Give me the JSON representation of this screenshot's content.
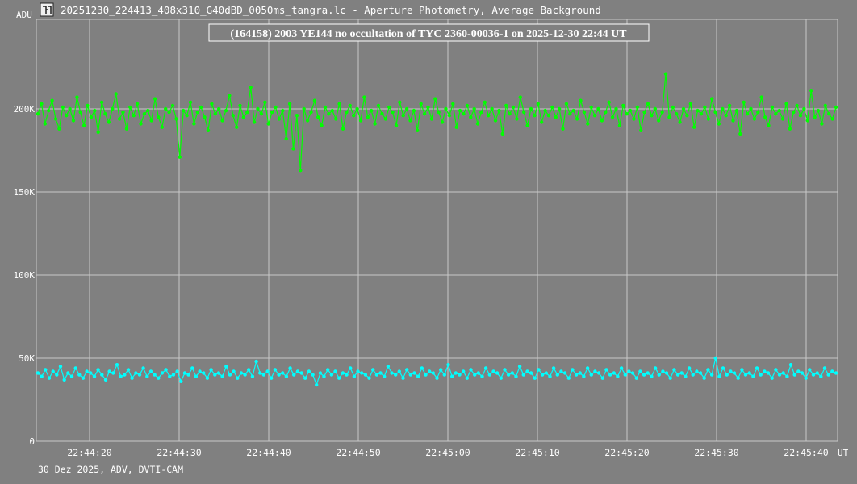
{
  "window": {
    "title": "20251230_224413_408x310_G40dBD_0050ms_tangra.lc - Aperture Photometry, Average Background",
    "icon": "tangra-app-icon"
  },
  "footer": {
    "text": "30 Dez 2025, ADV, DVTI-CAM"
  },
  "colors": {
    "background": "#808080",
    "grid": "#c8c8c8",
    "target_series": "#00ff00",
    "comparison_series": "#00ffff",
    "text": "#ffffff"
  },
  "chart_data": {
    "type": "line",
    "title": "(164158) 2003 YE144 no occultation of TYC 2360-00036-1 on 2025-12-30  22:44 UT",
    "ylabel": "ADU",
    "xlabel": "UT",
    "ylim": [
      0,
      200000
    ],
    "y_ticks": [
      0,
      50000,
      100000,
      150000,
      200000
    ],
    "y_tick_labels": [
      "0",
      "50K",
      "100K",
      "150K",
      "200K"
    ],
    "x_ticks": [
      "22:44:20",
      "22:44:30",
      "22:44:40",
      "22:44:50",
      "22:45:00",
      "22:45:10",
      "22:45:20",
      "22:45:30",
      "22:45:40"
    ],
    "x_range_seconds": [
      15,
      60.0
    ],
    "grid": true,
    "marker": "dot",
    "series": [
      {
        "color": "#00ff00",
        "values": [
          197000,
          203000,
          191000,
          199000,
          205000,
          194000,
          188000,
          201000,
          196000,
          200000,
          193000,
          207000,
          198000,
          190000,
          202000,
          195000,
          199000,
          186000,
          204000,
          197000,
          192000,
          200000,
          209000,
          194000,
          198000,
          188000,
          201000,
          196000,
          203000,
          191000,
          197000,
          199000,
          193000,
          206000,
          195000,
          189000,
          200000,
          198000,
          202000,
          194000,
          171000,
          199000,
          196000,
          204000,
          191000,
          198000,
          201000,
          195000,
          187000,
          203000,
          197000,
          200000,
          193000,
          199000,
          208000,
          196000,
          189000,
          202000,
          195000,
          198000,
          213000,
          192000,
          200000,
          197000,
          204000,
          191000,
          198000,
          201000,
          194000,
          199000,
          182000,
          203000,
          176000,
          196000,
          163000,
          200000,
          193000,
          198000,
          205000,
          195000,
          190000,
          201000,
          197000,
          199000,
          194000,
          203000,
          188000,
          198000,
          202000,
          196000,
          200000,
          193000,
          207000,
          195000,
          199000,
          191000,
          202000,
          197000,
          194000,
          201000,
          198000,
          190000,
          204000,
          196000,
          200000,
          193000,
          199000,
          187000,
          203000,
          197000,
          201000,
          194000,
          206000,
          198000,
          192000,
          200000,
          196000,
          203000,
          189000,
          199000,
          197000,
          202000,
          195000,
          200000,
          191000,
          198000,
          204000,
          196000,
          200000,
          193000,
          199000,
          185000,
          202000,
          197000,
          201000,
          194000,
          207000,
          198000,
          190000,
          200000,
          196000,
          203000,
          192000,
          199000,
          196000,
          201000,
          195000,
          200000,
          188000,
          203000,
          197000,
          199000,
          194000,
          205000,
          198000,
          191000,
          201000,
          196000,
          200000,
          193000,
          198000,
          204000,
          195000,
          200000,
          190000,
          202000,
          197000,
          199000,
          194000,
          201000,
          187000,
          198000,
          203000,
          196000,
          200000,
          193000,
          198000,
          221000,
          195000,
          201000,
          197000,
          192000,
          200000,
          196000,
          203000,
          189000,
          199000,
          197000,
          201000,
          194000,
          206000,
          198000,
          191000,
          200000,
          196000,
          202000,
          193000,
          199000,
          185000,
          204000,
          197000,
          200000,
          194000,
          198000,
          207000,
          195000,
          190000,
          201000,
          197000,
          199000,
          194000,
          203000,
          188000,
          198000,
          202000,
          196000,
          200000,
          193000,
          211000,
          195000,
          199000,
          191000,
          202000,
          197000,
          194000,
          201000
        ]
      },
      {
        "color": "#00ffff",
        "values": [
          41000,
          39000,
          43000,
          38000,
          42000,
          40000,
          45000,
          37000,
          41000,
          39000,
          44000,
          40000,
          38000,
          42000,
          41000,
          39000,
          43000,
          40000,
          37000,
          42000,
          41000,
          46000,
          39000,
          40000,
          43000,
          38000,
          41000,
          40000,
          44000,
          39000,
          42000,
          40000,
          38000,
          41000,
          43000,
          39000,
          40000,
          42000,
          36000,
          41000,
          40000,
          44000,
          39000,
          42000,
          41000,
          38000,
          43000,
          40000,
          41000,
          39000,
          45000,
          40000,
          42000,
          38000,
          41000,
          40000,
          43000,
          39000,
          48000,
          41000,
          40000,
          42000,
          38000,
          43000,
          40000,
          41000,
          39000,
          44000,
          40000,
          42000,
          41000,
          38000,
          42000,
          40000,
          34000,
          41000,
          39000,
          43000,
          40000,
          42000,
          38000,
          41000,
          40000,
          44000,
          39000,
          42000,
          41000,
          40000,
          38000,
          43000,
          40000,
          41000,
          39000,
          45000,
          41000,
          40000,
          42000,
          38000,
          43000,
          40000,
          41000,
          39000,
          44000,
          40000,
          42000,
          41000,
          38000,
          43000,
          40000,
          46000,
          39000,
          41000,
          40000,
          42000,
          38000,
          43000,
          40000,
          41000,
          39000,
          44000,
          40000,
          42000,
          41000,
          38000,
          43000,
          40000,
          41000,
          39000,
          45000,
          40000,
          42000,
          41000,
          38000,
          43000,
          40000,
          41000,
          39000,
          44000,
          40000,
          42000,
          41000,
          38000,
          43000,
          40000,
          41000,
          39000,
          44000,
          40000,
          42000,
          41000,
          38000,
          43000,
          40000,
          41000,
          39000,
          44000,
          40000,
          42000,
          41000,
          38000,
          42000,
          40000,
          41000,
          39000,
          44000,
          40000,
          42000,
          41000,
          38000,
          43000,
          40000,
          41000,
          39000,
          44000,
          40000,
          42000,
          41000,
          38000,
          43000,
          40000,
          50000,
          39000,
          44000,
          40000,
          42000,
          41000,
          38000,
          43000,
          40000,
          41000,
          39000,
          44000,
          40000,
          42000,
          41000,
          38000,
          43000,
          40000,
          41000,
          39000,
          46000,
          40000,
          42000,
          41000,
          38000,
          43000,
          40000,
          41000,
          39000,
          44000,
          40000,
          42000,
          41000
        ]
      }
    ]
  }
}
